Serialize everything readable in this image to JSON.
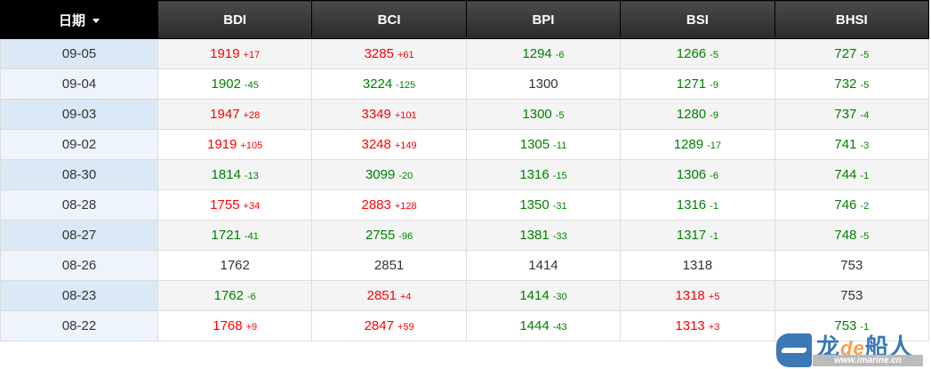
{
  "table": {
    "headers": [
      "日期",
      "BDI",
      "BCI",
      "BPI",
      "BSI",
      "BHSI"
    ],
    "sorted_column_indicator": "caret-down-icon",
    "colors": {
      "up": "#ff0000",
      "down": "#008000",
      "flat": "#333333"
    },
    "rows": [
      {
        "date": "09-05",
        "cells": [
          {
            "v": "1919",
            "c": "+17"
          },
          {
            "v": "3285",
            "c": "+61"
          },
          {
            "v": "1294",
            "c": "-6"
          },
          {
            "v": "1266",
            "c": "-5"
          },
          {
            "v": "727",
            "c": "-5"
          }
        ]
      },
      {
        "date": "09-04",
        "cells": [
          {
            "v": "1902",
            "c": "-45"
          },
          {
            "v": "3224",
            "c": "-125"
          },
          {
            "v": "1300",
            "c": ""
          },
          {
            "v": "1271",
            "c": "-9"
          },
          {
            "v": "732",
            "c": "-5"
          }
        ]
      },
      {
        "date": "09-03",
        "cells": [
          {
            "v": "1947",
            "c": "+28"
          },
          {
            "v": "3349",
            "c": "+101"
          },
          {
            "v": "1300",
            "c": "-5"
          },
          {
            "v": "1280",
            "c": "-9"
          },
          {
            "v": "737",
            "c": "-4"
          }
        ]
      },
      {
        "date": "09-02",
        "cells": [
          {
            "v": "1919",
            "c": "+105"
          },
          {
            "v": "3248",
            "c": "+149"
          },
          {
            "v": "1305",
            "c": "-11"
          },
          {
            "v": "1289",
            "c": "-17"
          },
          {
            "v": "741",
            "c": "-3"
          }
        ]
      },
      {
        "date": "08-30",
        "cells": [
          {
            "v": "1814",
            "c": "-13"
          },
          {
            "v": "3099",
            "c": "-20"
          },
          {
            "v": "1316",
            "c": "-15"
          },
          {
            "v": "1306",
            "c": "-6"
          },
          {
            "v": "744",
            "c": "-1"
          }
        ]
      },
      {
        "date": "08-28",
        "cells": [
          {
            "v": "1755",
            "c": "+34"
          },
          {
            "v": "2883",
            "c": "+128"
          },
          {
            "v": "1350",
            "c": "-31"
          },
          {
            "v": "1316",
            "c": "-1"
          },
          {
            "v": "746",
            "c": "-2"
          }
        ]
      },
      {
        "date": "08-27",
        "cells": [
          {
            "v": "1721",
            "c": "-41"
          },
          {
            "v": "2755",
            "c": "-96"
          },
          {
            "v": "1381",
            "c": "-33"
          },
          {
            "v": "1317",
            "c": "-1"
          },
          {
            "v": "748",
            "c": "-5"
          }
        ]
      },
      {
        "date": "08-26",
        "cells": [
          {
            "v": "1762",
            "c": ""
          },
          {
            "v": "2851",
            "c": ""
          },
          {
            "v": "1414",
            "c": ""
          },
          {
            "v": "1318",
            "c": ""
          },
          {
            "v": "753",
            "c": ""
          }
        ]
      },
      {
        "date": "08-23",
        "cells": [
          {
            "v": "1762",
            "c": "-6"
          },
          {
            "v": "2851",
            "c": "+4"
          },
          {
            "v": "1414",
            "c": "-30"
          },
          {
            "v": "1318",
            "c": "+5"
          },
          {
            "v": "753",
            "c": ""
          }
        ]
      },
      {
        "date": "08-22",
        "cells": [
          {
            "v": "1768",
            "c": "+9"
          },
          {
            "v": "2847",
            "c": "+59"
          },
          {
            "v": "1444",
            "c": "-43"
          },
          {
            "v": "1313",
            "c": "+3"
          },
          {
            "v": "753",
            "c": "-1"
          }
        ]
      }
    ]
  },
  "watermark": {
    "name_a": "龙",
    "name_de": "de",
    "name_b": "船人",
    "url": "www.imarine.cn"
  }
}
